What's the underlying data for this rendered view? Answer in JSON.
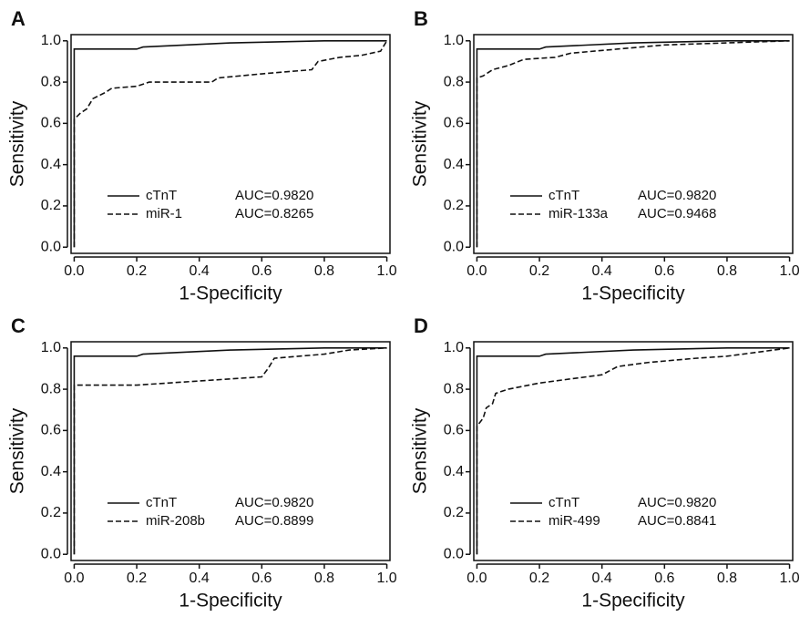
{
  "chart_data": [
    {
      "type": "line",
      "panel": "A",
      "xlabel": "1-Specificity",
      "ylabel": "Sensitivity",
      "xlim": [
        -0.01,
        1.01
      ],
      "ylim": [
        -0.03,
        1.03
      ],
      "xticks": [
        {
          "value": 0,
          "label": "0.0"
        },
        {
          "value": 0.2,
          "label": "0.2"
        },
        {
          "value": 0.4,
          "label": "0.4"
        },
        {
          "value": 0.6,
          "label": "0.6"
        },
        {
          "value": 0.8,
          "label": "0.8"
        },
        {
          "value": 1,
          "label": "1.0"
        }
      ],
      "yticks": [
        {
          "value": 0,
          "label": "0.0"
        },
        {
          "value": 0.2,
          "label": "0.2"
        },
        {
          "value": 0.4,
          "label": "0.4"
        },
        {
          "value": 0.6,
          "label": "0.6"
        },
        {
          "value": 0.8,
          "label": "0.8"
        },
        {
          "value": 1,
          "label": "1.0"
        }
      ],
      "series": [
        {
          "name": "cTnT",
          "auc": "AUC=0.9820",
          "color": "#111111",
          "dash": "solid",
          "x": [
            0,
            0,
            0.2,
            0.22,
            0.5,
            0.8,
            1
          ],
          "values": [
            0,
            0.96,
            0.96,
            0.97,
            0.99,
            1,
            1
          ]
        },
        {
          "name": "miR-1",
          "auc": "AUC=0.8265",
          "color": "#111111",
          "dash": "dashed",
          "x": [
            0,
            0,
            0.02,
            0.04,
            0.06,
            0.1,
            0.12,
            0.2,
            0.24,
            0.44,
            0.46,
            0.6,
            0.76,
            0.78,
            0.85,
            0.92,
            0.98,
            1
          ],
          "values": [
            0,
            0.62,
            0.65,
            0.67,
            0.72,
            0.75,
            0.77,
            0.78,
            0.8,
            0.8,
            0.82,
            0.84,
            0.86,
            0.9,
            0.92,
            0.93,
            0.95,
            1
          ]
        }
      ]
    },
    {
      "type": "line",
      "panel": "B",
      "xlabel": "1-Specificity",
      "ylabel": "Sensitivity",
      "xlim": [
        -0.01,
        1.01
      ],
      "ylim": [
        -0.03,
        1.03
      ],
      "xticks": [
        {
          "value": 0,
          "label": "0.0"
        },
        {
          "value": 0.2,
          "label": "0.2"
        },
        {
          "value": 0.4,
          "label": "0.4"
        },
        {
          "value": 0.6,
          "label": "0.6"
        },
        {
          "value": 0.8,
          "label": "0.8"
        },
        {
          "value": 1,
          "label": "1.0"
        }
      ],
      "yticks": [
        {
          "value": 0,
          "label": "0.0"
        },
        {
          "value": 0.2,
          "label": "0.2"
        },
        {
          "value": 0.4,
          "label": "0.4"
        },
        {
          "value": 0.6,
          "label": "0.6"
        },
        {
          "value": 0.8,
          "label": "0.8"
        },
        {
          "value": 1,
          "label": "1.0"
        }
      ],
      "series": [
        {
          "name": "cTnT",
          "auc": "AUC=0.9820",
          "color": "#111111",
          "dash": "solid",
          "x": [
            0,
            0,
            0.2,
            0.22,
            0.5,
            0.8,
            1
          ],
          "values": [
            0,
            0.96,
            0.96,
            0.97,
            0.99,
            1,
            1
          ]
        },
        {
          "name": "miR-133a",
          "auc": "AUC=0.9468",
          "color": "#111111",
          "dash": "dashed",
          "x": [
            0,
            0,
            0.02,
            0.05,
            0.1,
            0.15,
            0.25,
            0.3,
            0.45,
            0.6,
            0.8,
            1
          ],
          "values": [
            0,
            0.82,
            0.83,
            0.86,
            0.88,
            0.91,
            0.92,
            0.94,
            0.96,
            0.98,
            0.99,
            1
          ]
        }
      ]
    },
    {
      "type": "line",
      "panel": "C",
      "xlabel": "1-Specificity",
      "ylabel": "Sensitivity",
      "xlim": [
        -0.01,
        1.01
      ],
      "ylim": [
        -0.03,
        1.03
      ],
      "xticks": [
        {
          "value": 0,
          "label": "0.0"
        },
        {
          "value": 0.2,
          "label": "0.2"
        },
        {
          "value": 0.4,
          "label": "0.4"
        },
        {
          "value": 0.6,
          "label": "0.6"
        },
        {
          "value": 0.8,
          "label": "0.8"
        },
        {
          "value": 1,
          "label": "1.0"
        }
      ],
      "yticks": [
        {
          "value": 0,
          "label": "0.0"
        },
        {
          "value": 0.2,
          "label": "0.2"
        },
        {
          "value": 0.4,
          "label": "0.4"
        },
        {
          "value": 0.6,
          "label": "0.6"
        },
        {
          "value": 0.8,
          "label": "0.8"
        },
        {
          "value": 1,
          "label": "1.0"
        }
      ],
      "series": [
        {
          "name": "cTnT",
          "auc": "AUC=0.9820",
          "color": "#111111",
          "dash": "solid",
          "x": [
            0,
            0,
            0.2,
            0.22,
            0.5,
            0.8,
            1
          ],
          "values": [
            0,
            0.96,
            0.96,
            0.97,
            0.99,
            1,
            1
          ]
        },
        {
          "name": "miR-208b",
          "auc": "AUC=0.8899",
          "color": "#111111",
          "dash": "dashed",
          "x": [
            0,
            0,
            0.2,
            0.3,
            0.4,
            0.5,
            0.6,
            0.62,
            0.64,
            0.8,
            0.88,
            1
          ],
          "values": [
            0,
            0.82,
            0.82,
            0.83,
            0.84,
            0.85,
            0.86,
            0.9,
            0.95,
            0.97,
            0.99,
            1
          ]
        }
      ]
    },
    {
      "type": "line",
      "panel": "D",
      "xlabel": "1-Specificity",
      "ylabel": "Sensitivity",
      "xlim": [
        -0.01,
        1.01
      ],
      "ylim": [
        -0.03,
        1.03
      ],
      "xticks": [
        {
          "value": 0,
          "label": "0.0"
        },
        {
          "value": 0.2,
          "label": "0.2"
        },
        {
          "value": 0.4,
          "label": "0.4"
        },
        {
          "value": 0.6,
          "label": "0.6"
        },
        {
          "value": 0.8,
          "label": "0.8"
        },
        {
          "value": 1,
          "label": "1.0"
        }
      ],
      "yticks": [
        {
          "value": 0,
          "label": "0.0"
        },
        {
          "value": 0.2,
          "label": "0.2"
        },
        {
          "value": 0.4,
          "label": "0.4"
        },
        {
          "value": 0.6,
          "label": "0.6"
        },
        {
          "value": 0.8,
          "label": "0.8"
        },
        {
          "value": 1,
          "label": "1.0"
        }
      ],
      "series": [
        {
          "name": "cTnT",
          "auc": "AUC=0.9820",
          "color": "#111111",
          "dash": "solid",
          "x": [
            0,
            0,
            0.2,
            0.22,
            0.5,
            0.8,
            1
          ],
          "values": [
            0,
            0.96,
            0.96,
            0.97,
            0.99,
            1,
            1
          ]
        },
        {
          "name": "miR-499",
          "auc": "AUC=0.8841",
          "color": "#111111",
          "dash": "dashed",
          "x": [
            0,
            0,
            0.02,
            0.03,
            0.05,
            0.06,
            0.1,
            0.2,
            0.3,
            0.4,
            0.45,
            0.55,
            0.7,
            0.8,
            0.9,
            1
          ],
          "values": [
            0,
            0.62,
            0.66,
            0.71,
            0.73,
            0.78,
            0.8,
            0.83,
            0.85,
            0.87,
            0.91,
            0.93,
            0.95,
            0.96,
            0.98,
            1
          ]
        }
      ]
    }
  ]
}
